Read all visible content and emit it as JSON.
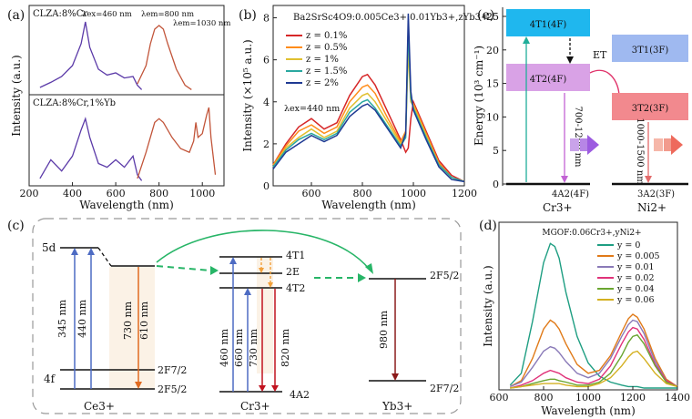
{
  "colors": {
    "ce": "#e06a20",
    "cr_red": "#c1121f",
    "cr_blue": "#3d62b6",
    "green": "#27b567",
    "cz_red": "#b5503a",
    "purple": "#6b44c4",
    "cyan_box": "#1fb7ee",
    "pink_box": "#d9a2e6",
    "lightblue_box": "#9fb9f0",
    "salmon_box": "#f2898e"
  },
  "panel_a": {
    "label": "(a)",
    "ylabel": "Intensity (a.u.)",
    "xlabel": "Wavelength (nm)",
    "xticks": [
      "200",
      "400",
      "600",
      "800",
      "1000"
    ],
    "top_title": "CLZA:8%Cr",
    "bottom_title": "CLZA:8%Cr,1%Yb",
    "legend": [
      "λex=460 nm",
      "λem=800 nm",
      "λem=1030 nm"
    ]
  },
  "panel_b": {
    "label": "(b)",
    "title": "Ba2SrSc4O9:0.005Ce3+,0.01Yb3+,zYb3+",
    "ylabel": "Intensity (×10⁵ a.u.)",
    "xlabel": "Wavelength (nm)",
    "yticks": [
      "0",
      "2",
      "4",
      "6",
      "8"
    ],
    "xticks": [
      "600",
      "800",
      "1000",
      "1200"
    ],
    "excitation": "λex=440 nm"
  },
  "panel_c": {
    "label": "(c)",
    "ce_levels": [
      "5d",
      "4f",
      "2F7/2",
      "2F5/2"
    ],
    "ce_transitions": [
      "345 nm",
      "440 nm",
      "730 nm",
      "610 nm"
    ],
    "ce_ion": "Ce3+",
    "cr_levels": [
      "4T1",
      "2E",
      "4T2",
      "4A2"
    ],
    "cr_transitions": [
      "460 nm",
      "660 nm",
      "730 nm",
      "820 nm"
    ],
    "cr_ion": "Cr3+",
    "yb_levels": [
      "2F5/2",
      "2F7/2"
    ],
    "yb_transition": "980 nm",
    "yb_ion": "Yb3+"
  },
  "panel_d": {
    "label": "(d)",
    "title": "MGOF:0.06Cr3+,yNi2+",
    "ylabel": "Intensity (a.u.)",
    "xlabel": "Wavelength (nm)",
    "xticks": [
      "600",
      "800",
      "1000",
      "1200",
      "1400"
    ]
  },
  "panel_e": {
    "label": "(e)",
    "ylabel": "Energy (10³ cm⁻¹)",
    "yticks": [
      "0",
      "5",
      "10",
      "15",
      "20",
      "25"
    ],
    "cr_box_top": "4T1(4F)",
    "cr_box_mid": "4T2(4F)",
    "cr_emission": "700-1200 nm",
    "cr_ground": "4A2(4F)",
    "cr_ion": "Cr3+",
    "ni_box_top": "3T1(3F)",
    "ni_box_mid": "3T2(3F)",
    "ni_emission": "1000-1500 nm",
    "ni_ground": "3A2(3F)",
    "ni_ion": "Ni2+",
    "transfer": "ET"
  },
  "chart_data": [
    {
      "type": "line",
      "panel": "a",
      "title": "CLZA:8%Cr / CLZA:8%Cr,1%Yb",
      "xlabel": "Wavelength (nm)",
      "ylabel": "Intensity (a.u.)",
      "xlim": [
        200,
        1100
      ],
      "series": [
        {
          "name": "λex=460 nm (top)",
          "x": [
            250,
            300,
            350,
            400,
            440,
            460,
            480,
            520,
            560,
            600,
            640,
            680,
            700,
            720
          ],
          "y": [
            0.05,
            0.12,
            0.2,
            0.35,
            0.65,
            0.95,
            0.6,
            0.3,
            0.22,
            0.25,
            0.18,
            0.2,
            0.08,
            0.02
          ]
        },
        {
          "name": "λem=800 nm (top)",
          "x": [
            700,
            740,
            760,
            780,
            800,
            820,
            840,
            880,
            920,
            950
          ],
          "y": [
            0.1,
            0.35,
            0.65,
            0.85,
            0.9,
            0.85,
            0.65,
            0.3,
            0.08,
            0.02
          ]
        },
        {
          "name": "λex=460 nm (bottom)",
          "x": [
            250,
            300,
            350,
            400,
            440,
            460,
            480,
            520,
            560,
            600,
            640,
            680,
            700,
            720
          ],
          "y": [
            0.05,
            0.3,
            0.15,
            0.35,
            0.7,
            0.85,
            0.6,
            0.25,
            0.2,
            0.3,
            0.2,
            0.35,
            0.1,
            0.02
          ]
        },
        {
          "name": "λem=1030 nm (bottom)",
          "x": [
            700,
            740,
            780,
            800,
            820,
            860,
            900,
            940,
            960,
            970,
            980,
            1000,
            1020,
            1030,
            1040,
            1060
          ],
          "y": [
            0.05,
            0.4,
            0.8,
            0.85,
            0.8,
            0.6,
            0.45,
            0.4,
            0.55,
            0.8,
            0.6,
            0.65,
            0.9,
            1.0,
            0.6,
            0.1
          ]
        }
      ]
    },
    {
      "type": "line",
      "panel": "b",
      "title": "Ba2SrSc4O9:0.005Ce3+,0.01Yb3+,zYb3+",
      "xlabel": "Wavelength (nm)",
      "ylabel": "Intensity (×10⁵ a.u.)",
      "xlim": [
        450,
        1200
      ],
      "ylim": [
        0,
        8.5
      ],
      "x": [
        450,
        500,
        550,
        600,
        650,
        700,
        750,
        800,
        820,
        850,
        900,
        950,
        970,
        980,
        990,
        1000,
        1050,
        1100,
        1150,
        1200
      ],
      "series": [
        {
          "name": "z = 0.1%",
          "color": "#d62728",
          "y": [
            1.0,
            2.0,
            2.8,
            3.2,
            2.7,
            3.0,
            4.3,
            5.2,
            5.3,
            4.8,
            3.5,
            2.2,
            1.6,
            1.8,
            3.2,
            4.0,
            2.6,
            1.2,
            0.5,
            0.2
          ]
        },
        {
          "name": "z = 0.5%",
          "color": "#ff8c1a",
          "y": [
            1.0,
            1.9,
            2.6,
            2.9,
            2.5,
            2.8,
            4.0,
            4.7,
            4.8,
            4.4,
            3.2,
            2.1,
            2.6,
            7.0,
            4.0,
            3.9,
            2.5,
            1.1,
            0.4,
            0.2
          ]
        },
        {
          "name": "z = 1%",
          "color": "#e0c030",
          "y": [
            0.9,
            1.8,
            2.3,
            2.7,
            2.3,
            2.6,
            3.7,
            4.3,
            4.4,
            4.0,
            3.0,
            2.0,
            2.4,
            6.5,
            4.0,
            3.8,
            2.4,
            1.0,
            0.4,
            0.2
          ]
        },
        {
          "name": "z = 1.5%",
          "color": "#2aa8a0",
          "y": [
            0.9,
            1.7,
            2.2,
            2.5,
            2.2,
            2.5,
            3.5,
            4.0,
            4.1,
            3.7,
            2.8,
            1.9,
            2.3,
            7.5,
            4.2,
            3.7,
            2.3,
            1.0,
            0.4,
            0.2
          ]
        },
        {
          "name": "z = 2%",
          "color": "#1f3a93",
          "y": [
            0.8,
            1.6,
            2.0,
            2.4,
            2.1,
            2.4,
            3.3,
            3.8,
            3.9,
            3.6,
            2.7,
            1.8,
            2.5,
            8.2,
            4.5,
            3.6,
            2.2,
            0.9,
            0.3,
            0.2
          ]
        }
      ]
    },
    {
      "type": "line",
      "panel": "d",
      "title": "MGOF:0.06Cr3+,yNi2+",
      "xlabel": "Wavelength (nm)",
      "ylabel": "Intensity (a.u.)",
      "xlim": [
        600,
        1400
      ],
      "ylim": [
        0,
        1.05
      ],
      "x": [
        650,
        700,
        750,
        800,
        830,
        850,
        870,
        900,
        950,
        1000,
        1050,
        1100,
        1150,
        1180,
        1200,
        1220,
        1250,
        1300,
        1350,
        1400
      ],
      "series": [
        {
          "name": "y = 0",
          "color": "#1e9e82",
          "y": [
            0.02,
            0.1,
            0.45,
            0.85,
            0.98,
            0.96,
            0.88,
            0.65,
            0.35,
            0.17,
            0.08,
            0.04,
            0.02,
            0.01,
            0.01,
            0.01,
            0.0,
            0.0,
            0.0,
            0.0
          ]
        },
        {
          "name": "y = 0.005",
          "color": "#e07a18",
          "y": [
            0.01,
            0.05,
            0.2,
            0.4,
            0.46,
            0.44,
            0.4,
            0.3,
            0.16,
            0.1,
            0.12,
            0.22,
            0.38,
            0.47,
            0.5,
            0.48,
            0.4,
            0.2,
            0.06,
            0.01
          ]
        },
        {
          "name": "y = 0.01",
          "color": "#8a7ab8",
          "y": [
            0.01,
            0.04,
            0.14,
            0.25,
            0.28,
            0.27,
            0.24,
            0.18,
            0.1,
            0.07,
            0.1,
            0.2,
            0.35,
            0.43,
            0.46,
            0.45,
            0.37,
            0.18,
            0.05,
            0.01
          ]
        },
        {
          "name": "y = 0.02",
          "color": "#e0337a",
          "y": [
            0.0,
            0.02,
            0.05,
            0.1,
            0.12,
            0.11,
            0.1,
            0.07,
            0.04,
            0.03,
            0.06,
            0.15,
            0.3,
            0.38,
            0.41,
            0.4,
            0.33,
            0.16,
            0.05,
            0.01
          ]
        },
        {
          "name": "y = 0.04",
          "color": "#6aa630",
          "y": [
            0.0,
            0.01,
            0.03,
            0.05,
            0.06,
            0.06,
            0.05,
            0.04,
            0.02,
            0.02,
            0.04,
            0.1,
            0.22,
            0.31,
            0.35,
            0.36,
            0.3,
            0.15,
            0.04,
            0.01
          ]
        },
        {
          "name": "y = 0.06",
          "color": "#d4b020",
          "y": [
            0.0,
            0.01,
            0.02,
            0.03,
            0.03,
            0.03,
            0.03,
            0.02,
            0.01,
            0.01,
            0.03,
            0.07,
            0.15,
            0.21,
            0.24,
            0.25,
            0.2,
            0.1,
            0.03,
            0.01
          ]
        }
      ]
    }
  ]
}
